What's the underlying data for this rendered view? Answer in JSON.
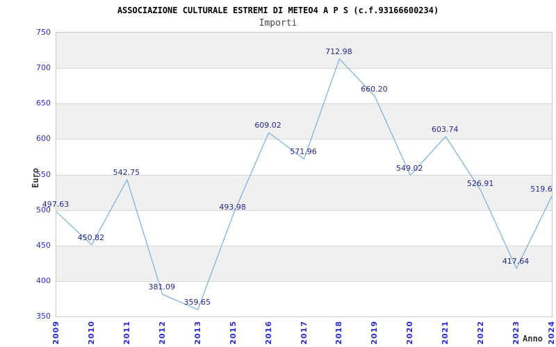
{
  "header": {
    "title": "ASSOCIAZIONE CULTURALE ESTREMI DI METEO4 A P S (c.f.93166600234)",
    "subtitle": "Importi"
  },
  "axes": {
    "y_title": "Euro",
    "x_title": "Anno"
  },
  "chart_data": {
    "type": "line",
    "title": "ASSOCIAZIONE CULTURALE ESTREMI DI METEO4 A P S (c.f.93166600234)",
    "subtitle": "Importi",
    "xlabel": "Anno",
    "ylabel": "Euro",
    "categories": [
      "2009",
      "2010",
      "2011",
      "2012",
      "2013",
      "2015",
      "2016",
      "2017",
      "2018",
      "2019",
      "2020",
      "2021",
      "2022",
      "2023",
      "2024"
    ],
    "values": [
      497.63,
      450.82,
      542.75,
      381.09,
      359.65,
      493.98,
      609.02,
      571.96,
      712.98,
      660.2,
      549.02,
      603.74,
      526.91,
      417.64,
      519.6
    ],
    "point_labels": [
      "497.63",
      "450.82",
      "542.75",
      "381.09",
      "359.65",
      "493.98",
      "609.02",
      "571.96",
      "712.98",
      "660.20",
      "549.02",
      "603.74",
      "526.91",
      "417.64",
      "519.6"
    ],
    "ylim": [
      350,
      750
    ],
    "ytick_step": 50,
    "ytick_labels": [
      "750",
      "700",
      "650",
      "600",
      "550",
      "500",
      "450",
      "400",
      "350"
    ],
    "grid": "horizontal gridlines with alternating shaded bands",
    "legend": "none",
    "colors": {
      "line": "#79aede",
      "tick_label": "#2b2bcc",
      "point_label": "#26268c",
      "band_fill": "#f0f0f0",
      "gridline": "#d9d9d9",
      "plot_border": "#c9c9c9",
      "title": "#000000",
      "subtitle": "#444444",
      "axis_title": "#333333"
    }
  }
}
